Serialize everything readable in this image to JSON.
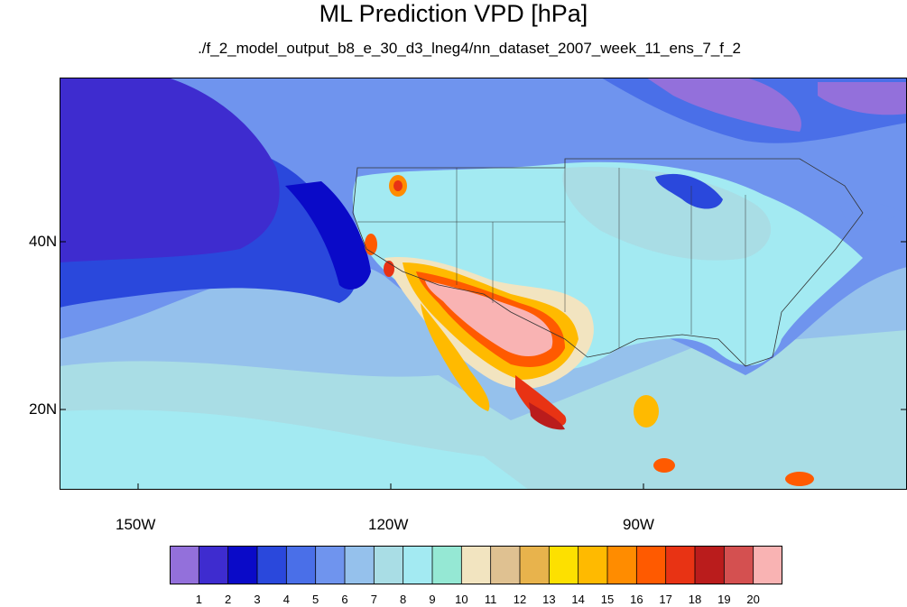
{
  "title": "ML Prediction VPD [hPa]",
  "subtitle": "./f_2_model_output_b8_e_30_d3_lneg4/nn_dataset_2007_week_11_ens_7_f_2",
  "axes": {
    "y_labels": [
      "40N",
      "20N"
    ],
    "x_labels": [
      "150W",
      "120W",
      "90W"
    ]
  },
  "colorbar": {
    "labels": [
      "1",
      "2",
      "3",
      "4",
      "5",
      "6",
      "7",
      "8",
      "9",
      "10",
      "11",
      "12",
      "13",
      "14",
      "15",
      "16",
      "17",
      "18",
      "19",
      "20"
    ],
    "colors": [
      "#9370db",
      "#3e2ccf",
      "#0a0ac8",
      "#2a48dc",
      "#4a6fe8",
      "#6f94ee",
      "#95c1ec",
      "#a9dde5",
      "#a3eaf2",
      "#95e8d4",
      "#f2e4c0",
      "#dfc191",
      "#e8b34c",
      "#fde000",
      "#ffba00",
      "#ff8c00",
      "#ff5a00",
      "#e83314",
      "#ba1c1c",
      "#d45050",
      "#f9b3b3"
    ]
  },
  "map": {
    "projection": "cylindrical equidistant",
    "lon_range": [
      -160,
      -61
    ],
    "lat_range": [
      11,
      60
    ],
    "ocean_base_color": "#95c1ec"
  }
}
